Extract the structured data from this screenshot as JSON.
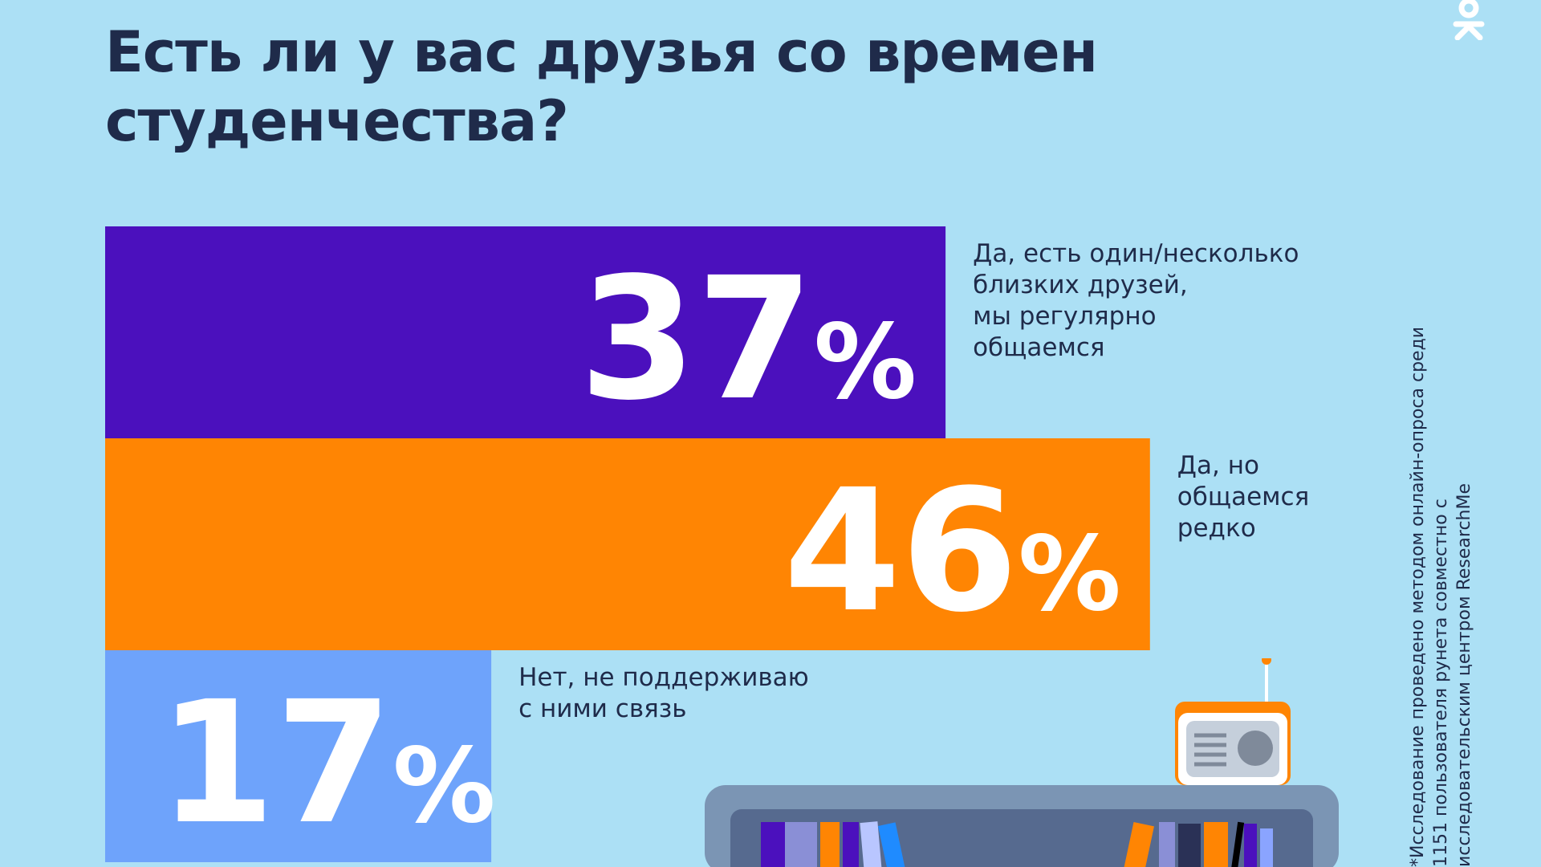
{
  "title": "Есть ли у вас друзья со времен студенчества?",
  "footnote": "*Исследование проведено методом онлайн-опроса среди 1151 пользователя рунета совместно с исследовательским центром ResearchMe",
  "logo_icon": "ok-logo-icon",
  "colors": {
    "background": "#ace0f5",
    "text": "#1f2b4a",
    "bar1": "#4b10bd",
    "bar2": "#ff8503",
    "bar3": "#6ea3fb"
  },
  "chart_data": {
    "type": "bar",
    "orientation": "horizontal",
    "unit": "%",
    "xlim": [
      0,
      100
    ],
    "categories": [
      "Да, есть один/несколько близких друзей, мы регулярно общаемся",
      "Да, но общаемся редко",
      "Нет, не поддерживаю с ними связь"
    ],
    "category_lines": [
      [
        "Да, есть один/несколько",
        "близких друзей,",
        "мы регулярно",
        "общаемся"
      ],
      [
        "Да, но",
        "общаемся",
        "редко"
      ],
      [
        "Нет, не поддерживаю",
        "с ними связь"
      ]
    ],
    "values": [
      37,
      46,
      17
    ],
    "value_labels": [
      "37",
      "46",
      "17"
    ],
    "percent_sign": "%",
    "colors": [
      "#4b10bd",
      "#ff8503",
      "#6ea3fb"
    ]
  }
}
